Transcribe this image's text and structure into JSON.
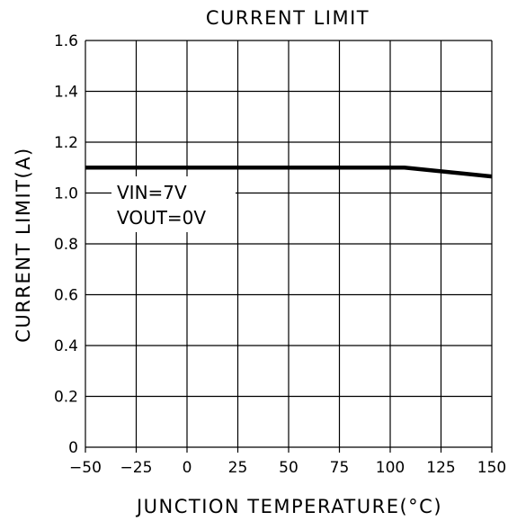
{
  "chart_data": {
    "type": "line",
    "title": "CURRENT LIMIT",
    "xlabel": "JUNCTION TEMPERATURE(°C)",
    "ylabel": "CURRENT LIMIT(A)",
    "xlim": [
      -50,
      150
    ],
    "ylim": [
      0,
      1.6
    ],
    "x_ticks": [
      -50,
      -25,
      0,
      25,
      50,
      75,
      100,
      125,
      150
    ],
    "x_tick_labels": [
      "−50",
      "−25",
      "0",
      "25",
      "50",
      "75",
      "100",
      "125",
      "150"
    ],
    "y_ticks": [
      0,
      0.2,
      0.4,
      0.6,
      0.8,
      1.0,
      1.2,
      1.4,
      1.6
    ],
    "y_tick_labels": [
      "0",
      "0.2",
      "0.4",
      "0.6",
      "0.8",
      "1.0",
      "1.2",
      "1.4",
      "1.6"
    ],
    "grid": true,
    "series": [
      {
        "x": [
          -50,
          107,
          150
        ],
        "y": [
          1.1,
          1.1,
          1.065
        ]
      }
    ],
    "annotations": [
      "VIN=7V",
      "VOUT=0V"
    ],
    "colors": {
      "line": "#000000",
      "grid": "#000000",
      "background": "#ffffff"
    }
  }
}
